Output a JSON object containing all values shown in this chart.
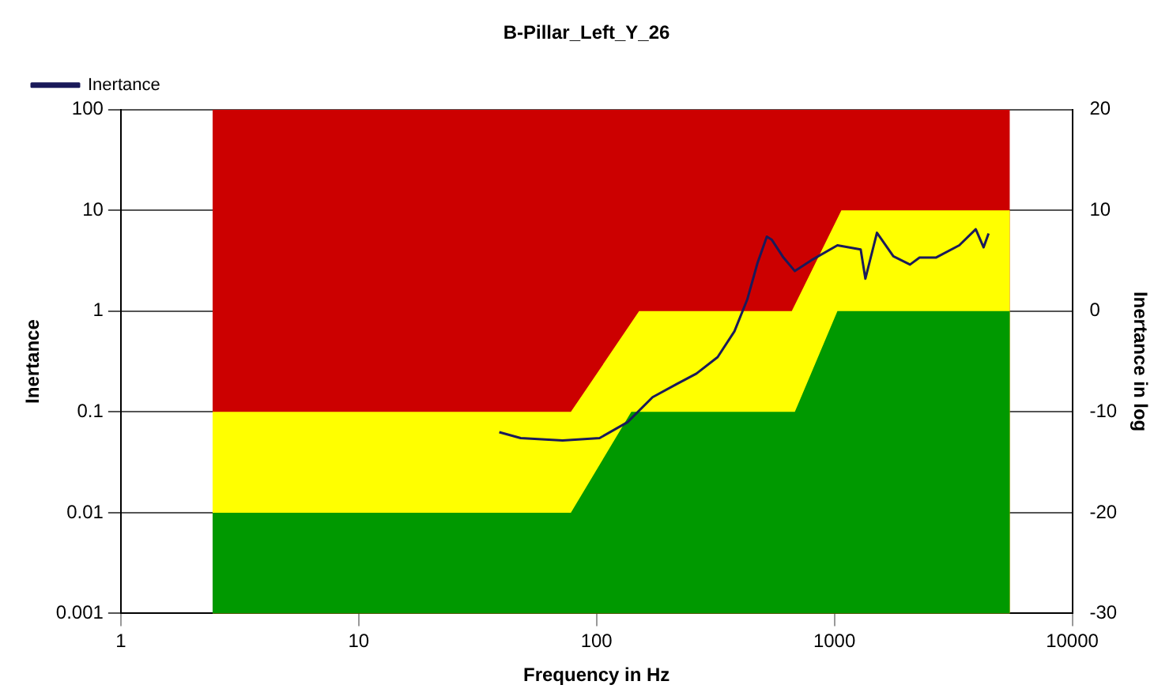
{
  "chart_data": {
    "type": "line",
    "title": "B-Pillar_Left_Y_26",
    "xlabel": "Frequency in Hz",
    "ylabel": "Inertance",
    "y2label": "Inertance in log",
    "log": "xy",
    "legend": "top left",
    "grid": true,
    "xlim": [
      1,
      10000
    ],
    "xticks": [
      1,
      10,
      100,
      1000,
      10000
    ],
    "ylim": [
      0.001,
      100
    ],
    "yticks": [
      0.001,
      0.01,
      0.1,
      1,
      10,
      100
    ],
    "y2lim": [
      -30,
      20
    ],
    "y2ticks": [
      -30,
      -20,
      -10,
      0,
      10,
      20
    ],
    "series": [
      {
        "type": "area",
        "color": "#cc0000",
        "x": [
          2.43,
          5470
        ],
        "values": [
          100,
          100
        ]
      },
      {
        "type": "area",
        "color": "#ffff00",
        "x": [
          2.43,
          78,
          151,
          662,
          1070,
          5470
        ],
        "values": [
          0.1,
          0.1,
          1,
          1,
          10,
          10
        ]
      },
      {
        "type": "area",
        "color": "#009900",
        "x": [
          2.43,
          78,
          140,
          682,
          1030,
          5470
        ],
        "values": [
          0.01,
          0.01,
          0.1,
          0.1,
          1,
          1
        ]
      },
      {
        "name": "Inertance",
        "color": "#1a1a5a",
        "x": [
          39,
          48,
          72,
          103,
          135,
          172,
          218,
          263,
          323,
          380,
          430,
          475,
          520,
          546,
          611,
          682,
          800,
          1030,
          1290,
          1350,
          1510,
          1770,
          2080,
          2280,
          2670,
          3350,
          3930,
          4240,
          4450
        ],
        "values": [
          0.063,
          0.055,
          0.052,
          0.055,
          0.079,
          0.14,
          0.19,
          0.24,
          0.35,
          0.63,
          1.3,
          3.0,
          5.5,
          5.1,
          3.4,
          2.5,
          3.2,
          4.5,
          4.1,
          2.1,
          6.0,
          3.5,
          2.9,
          3.4,
          3.4,
          4.5,
          6.5,
          4.3,
          5.9
        ]
      }
    ]
  }
}
